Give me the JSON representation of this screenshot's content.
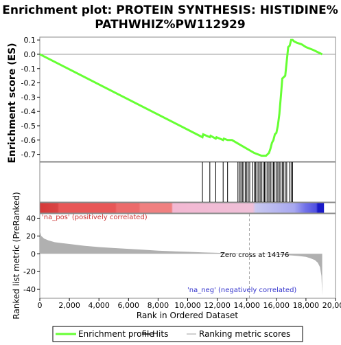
{
  "chart_data": {
    "type": "line",
    "title_line1": "Enrichment plot: PROTEIN SYNTHESIS: HISTIDINE%",
    "title_line2": "PATHWHIZ%PW112929",
    "top_panel": {
      "ylabel": "Enrichment score (ES)",
      "ylim": [
        -0.75,
        0.12
      ],
      "yticks": [
        0.1,
        0.0,
        -0.1,
        -0.2,
        -0.3,
        -0.4,
        -0.5,
        -0.6,
        -0.7
      ],
      "ytick_labels": [
        "0.1",
        "0.0",
        "-0.1",
        "-0.2",
        "-0.3",
        "-0.4",
        "-0.5",
        "-0.6",
        "-0.7"
      ],
      "series": [
        {
          "name": "Enrichment profile",
          "color": "#66ff33",
          "x": [
            0,
            11000,
            11050,
            11500,
            11550,
            11900,
            11950,
            12400,
            12450,
            12700,
            13000,
            13500,
            14000,
            14500,
            15000,
            15300,
            15400,
            15500,
            15600,
            15700,
            15800,
            15900,
            16000,
            16100,
            16200,
            16300,
            16400,
            16500,
            16600,
            16700,
            16800,
            16900,
            17000,
            17100,
            17200,
            17400,
            17700,
            18000,
            18500,
            19100
          ],
          "y": [
            0.0,
            -0.58,
            -0.56,
            -0.58,
            -0.57,
            -0.59,
            -0.58,
            -0.6,
            -0.59,
            -0.6,
            -0.6,
            -0.63,
            -0.66,
            -0.69,
            -0.71,
            -0.71,
            -0.7,
            -0.69,
            -0.66,
            -0.62,
            -0.6,
            -0.56,
            -0.55,
            -0.5,
            -0.42,
            -0.3,
            -0.17,
            -0.16,
            -0.15,
            -0.05,
            0.05,
            0.06,
            0.1,
            0.1,
            0.09,
            0.08,
            0.07,
            0.05,
            0.03,
            0.0
          ]
        }
      ]
    },
    "hits": [
      11000,
      11500,
      11900,
      12400,
      12700,
      13400,
      13500,
      13600,
      13700,
      13800,
      13900,
      14000,
      14100,
      14200,
      14400,
      14500,
      14600,
      14700,
      14800,
      14900,
      15000,
      15100,
      15200,
      15300,
      15400,
      15500,
      15600,
      15700,
      15800,
      15900,
      16000,
      16100,
      16200,
      16300,
      16400,
      16500,
      16600,
      16700,
      16900,
      17000,
      17100
    ],
    "bottom_panel": {
      "ylabel": "Ranked list metric (PreRanked)",
      "ylim": [
        -50,
        45
      ],
      "yticks": [
        40,
        20,
        0,
        -20,
        -40
      ],
      "ytick_labels": [
        "40",
        "20",
        "0",
        "-20",
        "-40"
      ],
      "metric_x": [
        0,
        100,
        300,
        600,
        1000,
        1500,
        2000,
        3000,
        4000,
        5000,
        6000,
        7000,
        8000,
        9000,
        10000,
        11000,
        12000,
        13000,
        14000,
        14176,
        15000,
        16000,
        17000,
        17500,
        18000,
        18300,
        18600,
        18800,
        18950,
        19050,
        19100
      ],
      "metric_y": [
        26,
        20,
        17,
        15,
        13,
        12,
        11,
        9,
        7.5,
        6.5,
        5.5,
        4.5,
        3.5,
        2.8,
        2.2,
        1.6,
        1.1,
        0.6,
        0.2,
        0,
        -0.4,
        -1,
        -1.8,
        -2.5,
        -3.5,
        -5,
        -7,
        -10,
        -15,
        -25,
        -47
      ],
      "annotations": {
        "pos": "'na_pos' (positively correlated)",
        "neg": "'na_neg' (negatively correlated)",
        "zero": "Zero cross at 14176"
      },
      "zero_cross": 14176
    },
    "xlabel": "Rank in Ordered Dataset",
    "xlim": [
      0,
      20000
    ],
    "xticks": [
      0,
      2000,
      4000,
      6000,
      8000,
      10000,
      12000,
      14000,
      16000,
      18000,
      20000
    ],
    "xtick_labels": [
      "0",
      "2,000",
      "4,000",
      "6,000",
      "8,000",
      "10,000",
      "12,000",
      "14,000",
      "16,000",
      "18,000",
      "20,000"
    ],
    "legend": {
      "placement": "bottom",
      "items": [
        {
          "label": "Enrichment profile",
          "color": "#66ff33"
        },
        {
          "label": "Hits",
          "color": "#000000"
        },
        {
          "label": "Ranking metric scores",
          "color": "#c0c0c0"
        }
      ]
    },
    "colors": {
      "metric_fill": "#b0b0b0",
      "pos_text": "#cc3333",
      "neg_text": "#3333cc",
      "zero_line": "#aaaaaa"
    }
  }
}
